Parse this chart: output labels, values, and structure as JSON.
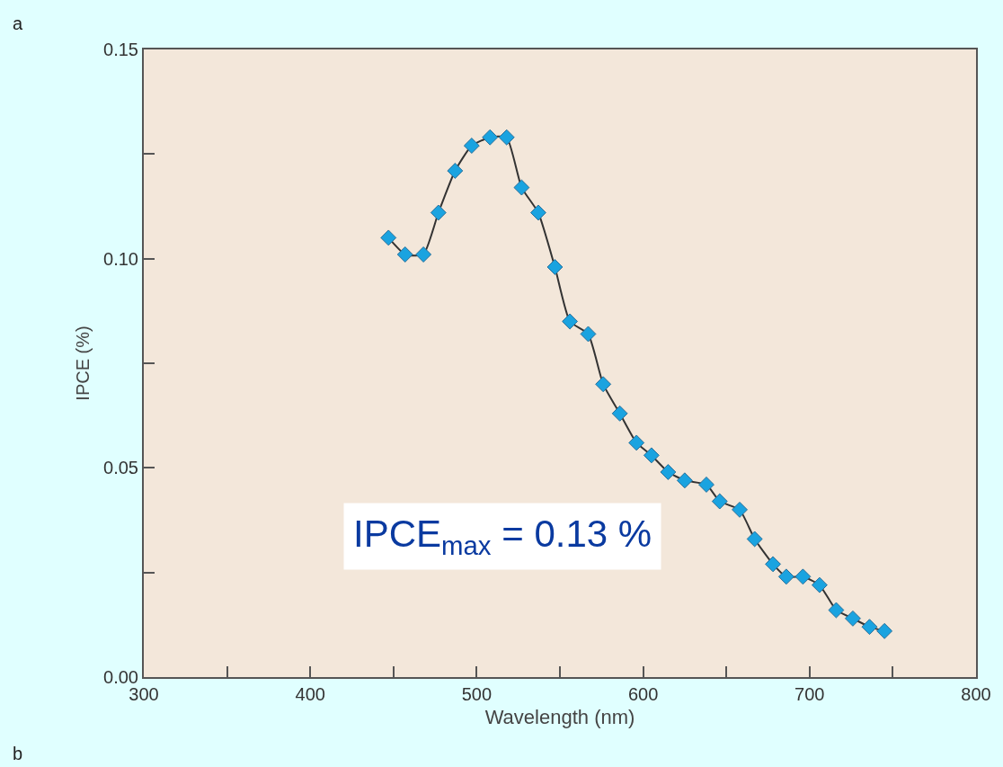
{
  "chart_data": {
    "type": "line",
    "xlabel": "Wavelength (nm)",
    "ylabel": "IPCE (%)",
    "x": [
      447,
      457,
      468,
      477,
      487,
      497,
      508,
      518,
      527,
      537,
      547,
      556,
      567,
      576,
      586,
      596,
      605,
      615,
      625,
      638,
      646,
      658,
      667,
      678,
      686,
      696,
      706,
      716,
      726,
      736,
      745
    ],
    "series": [
      {
        "color": "#1aa3e0",
        "values": [
          0.105,
          0.101,
          0.101,
          0.111,
          0.121,
          0.127,
          0.129,
          0.129,
          0.117,
          0.111,
          0.098,
          0.085,
          0.082,
          0.07,
          0.063,
          0.056,
          0.053,
          0.049,
          0.047,
          0.046,
          0.042,
          0.04,
          0.033,
          0.027,
          0.024,
          0.024,
          0.022,
          0.016,
          0.014,
          0.012,
          0.011
        ]
      }
    ],
    "xlim": [
      300,
      800
    ],
    "ylim": [
      0,
      0.15
    ],
    "xticks": [
      300,
      {
        "value": 350,
        "label": null
      },
      400,
      {
        "value": 450,
        "label": null
      },
      500,
      {
        "value": 550,
        "label": null
      },
      600,
      {
        "value": 650,
        "label": null
      },
      700,
      {
        "value": 750,
        "label": null
      },
      800
    ],
    "yticks": [
      {
        "value": 0,
        "label": "0.00"
      },
      {
        "value": 0.025,
        "label": null
      },
      {
        "value": 0.05,
        "label": "0.05"
      },
      {
        "value": 0.075,
        "label": null
      },
      {
        "value": 0.1,
        "label": "0.10"
      },
      {
        "value": 0.125,
        "label": null
      },
      {
        "value": 0.15,
        "label": "0.15"
      }
    ],
    "annotations": [
      "a",
      "IPCE$_{max}$ = 0.13 %",
      "b"
    ],
    "marker": "diamond",
    "line_style": "solid",
    "grid": false,
    "legend": false
  }
}
